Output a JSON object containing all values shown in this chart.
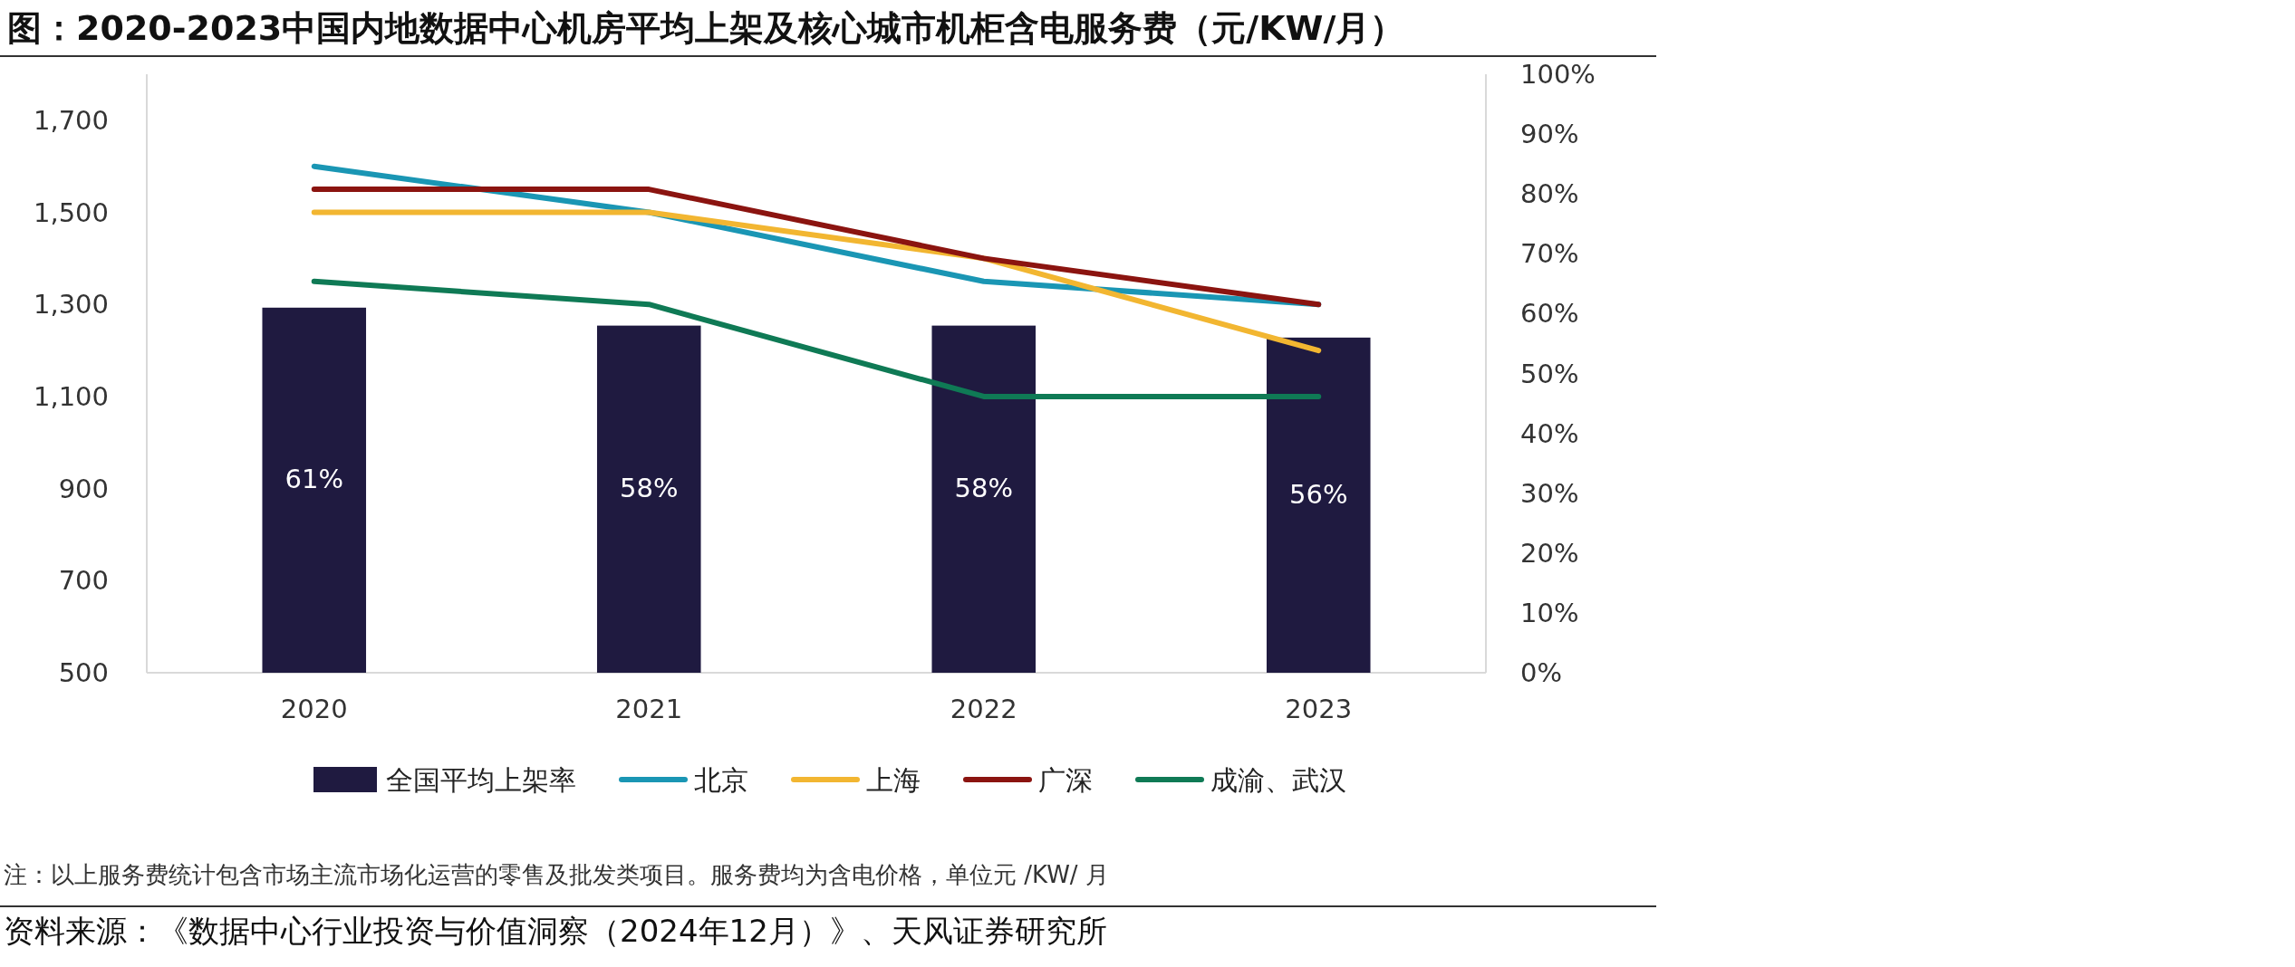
{
  "chart_data": {
    "type": "line",
    "title": "图：2020-2023中国内地数据中心机房平均上架及核心城市机柜含电服务费（元/KW/月）",
    "categories": [
      "2020",
      "2021",
      "2022",
      "2023"
    ],
    "series": [
      {
        "name": "全国平均上架率",
        "type": "bar",
        "axis": "y2",
        "color": "#1f1a40",
        "values": [
          61,
          58,
          58,
          56
        ],
        "value_labels": [
          "61%",
          "58%",
          "58%",
          "56%"
        ]
      },
      {
        "name": "北京",
        "color": "#1a96b4",
        "values": [
          1600,
          1500,
          1350,
          1300
        ]
      },
      {
        "name": "上海",
        "color": "#f2b631",
        "values": [
          1500,
          1500,
          1400,
          1200
        ]
      },
      {
        "name": "广深",
        "color": "#8b1410",
        "values": [
          1550,
          1550,
          1400,
          1300
        ]
      },
      {
        "name": "成渝、武汉",
        "color": "#0f7a55",
        "values": [
          1350,
          1300,
          1100,
          1100
        ]
      }
    ],
    "ylim": [
      500,
      1800
    ],
    "yticks": [
      500,
      700,
      900,
      {
        "value": 1100,
        "label": "1,100"
      },
      {
        "value": 1300,
        "label": "1,300"
      },
      {
        "value": 1500,
        "label": "1,500"
      },
      {
        "value": 1700,
        "label": "1,700"
      }
    ],
    "y2lim": [
      0,
      100
    ],
    "y2ticks": [
      {
        "value": 0,
        "label": "0%"
      },
      {
        "value": 10,
        "label": "10%"
      },
      {
        "value": 20,
        "label": "20%"
      },
      {
        "value": 30,
        "label": "30%"
      },
      {
        "value": 40,
        "label": "40%"
      },
      {
        "value": 50,
        "label": "50%"
      },
      {
        "value": 60,
        "label": "60%"
      },
      {
        "value": 70,
        "label": "70%"
      },
      {
        "value": 80,
        "label": "80%"
      },
      {
        "value": 90,
        "label": "90%"
      },
      {
        "value": 100,
        "label": "100%"
      }
    ],
    "grid": false,
    "legend": "bottom",
    "marker": "none",
    "line_style": "solid",
    "annotations": [
      "注：以上服务费统计包含市场主流市场化运营的零售及批发类项目。服务费均为含电价格，单位元 /KW/ 月",
      "资料来源：《数据中心行业投资与价值洞察（2024年12月）》、天风证券研究所"
    ]
  }
}
